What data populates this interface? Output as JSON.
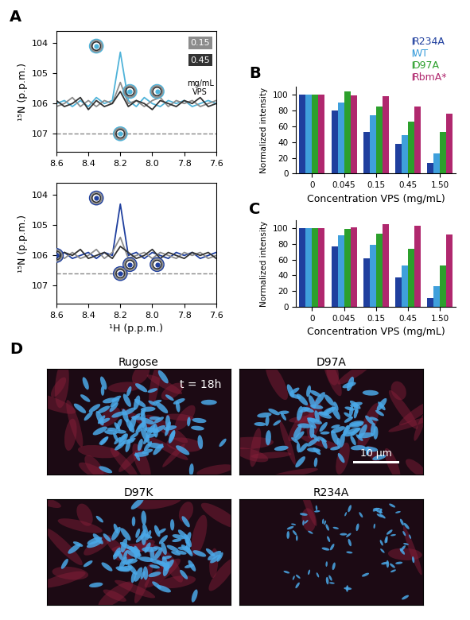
{
  "panel_labels": [
    "A",
    "B",
    "C",
    "D"
  ],
  "chart_data": [
    {
      "type": "line",
      "ylabel": "¹⁵N (p.p.m.)",
      "x": [
        8.6,
        8.55,
        8.5,
        8.45,
        8.4,
        8.35,
        8.3,
        8.25,
        8.2,
        8.15,
        8.1,
        8.05,
        8.0,
        7.95,
        7.9,
        7.85,
        7.8,
        7.75,
        7.7,
        7.65,
        7.6
      ],
      "series": [
        {
          "color": "#4fb3d9",
          "values": [
            106.0,
            105.9,
            106.1,
            105.9,
            106.1,
            105.8,
            106.0,
            105.9,
            104.3,
            105.9,
            106.1,
            105.8,
            106.0,
            106.1,
            105.9,
            106.0,
            105.9,
            106.1,
            106.0,
            105.9,
            106.0
          ]
        },
        {
          "name": "0.15",
          "color": "#8c8c8c",
          "values": [
            106.1,
            106.0,
            105.8,
            106.1,
            105.9,
            106.1,
            105.9,
            106.0,
            105.3,
            106.0,
            105.9,
            106.1,
            105.9,
            105.8,
            106.1,
            105.9,
            106.0,
            105.9,
            106.1,
            106.0,
            105.9
          ]
        },
        {
          "name": "0.45",
          "color": "#333333",
          "values": [
            105.9,
            106.1,
            106.0,
            105.8,
            106.2,
            105.9,
            106.1,
            106.0,
            105.6,
            106.1,
            105.9,
            106.0,
            106.2,
            105.9,
            106.0,
            106.1,
            105.9,
            106.0,
            105.8,
            106.1,
            106.0
          ]
        }
      ],
      "annotation": "mg/mL\nVPS",
      "peaks": {
        "x": [
          8.35,
          8.14,
          7.97,
          8.2
        ],
        "y": [
          104.1,
          105.6,
          105.6,
          107.0
        ]
      },
      "reference_line": 107.0,
      "xlim": [
        8.6,
        7.6
      ],
      "xticks": [
        8.6,
        8.4,
        8.2,
        8.0,
        7.8,
        7.6
      ],
      "ylim": [
        107.6,
        103.6
      ],
      "yticks": [
        104,
        105,
        106,
        107
      ]
    },
    {
      "type": "line",
      "xlabel": "¹H (p.p.m.)",
      "ylabel": "¹⁵N (p.p.m.)",
      "x": [
        8.6,
        8.55,
        8.5,
        8.45,
        8.4,
        8.35,
        8.3,
        8.25,
        8.2,
        8.15,
        8.1,
        8.05,
        8.0,
        7.95,
        7.9,
        7.85,
        7.8,
        7.75,
        7.7,
        7.65,
        7.6
      ],
      "series": [
        {
          "color": "#1f3f9e",
          "values": [
            106.0,
            105.9,
            106.1,
            106.0,
            105.9,
            106.1,
            105.9,
            106.0,
            104.3,
            106.0,
            105.9,
            106.1,
            105.9,
            106.0,
            106.1,
            105.9,
            106.0,
            105.9,
            106.1,
            106.0,
            105.9
          ]
        },
        {
          "color": "#8c8c8c",
          "values": [
            105.9,
            106.1,
            105.9,
            106.1,
            106.0,
            105.8,
            106.1,
            105.9,
            105.4,
            106.1,
            106.0,
            105.9,
            106.1,
            105.9,
            106.0,
            106.1,
            105.9,
            106.0,
            105.9,
            106.1,
            106.0
          ]
        },
        {
          "color": "#333333",
          "values": [
            106.1,
            105.9,
            106.0,
            105.8,
            106.1,
            106.0,
            105.9,
            106.1,
            105.7,
            105.9,
            106.1,
            106.0,
            105.8,
            106.1,
            105.9,
            106.0,
            106.1,
            105.9,
            106.0,
            105.9,
            106.1
          ]
        }
      ],
      "peaks": {
        "x": [
          8.35,
          8.6,
          8.14,
          7.97,
          8.2
        ],
        "y": [
          104.1,
          106.0,
          106.3,
          106.3,
          106.6
        ]
      },
      "reference_line": 106.6,
      "xlim": [
        8.6,
        7.6
      ],
      "xticks": [
        8.6,
        8.4,
        8.2,
        8.0,
        7.8,
        7.6
      ],
      "ylim": [
        107.6,
        103.6
      ],
      "yticks": [
        104,
        105,
        106,
        107
      ]
    },
    {
      "type": "bar",
      "xlabel": "Concentration VPS (mg/mL)",
      "ylabel": "Normalized intensity",
      "categories": [
        "0",
        "0.045",
        "0.15",
        "0.45",
        "1.50"
      ],
      "series": [
        {
          "name": "R234A",
          "color": "#1f3f9e",
          "values": [
            100,
            80,
            53,
            38,
            13
          ]
        },
        {
          "name": "WT",
          "color": "#3fa0dc",
          "values": [
            100,
            90,
            74,
            49,
            26
          ]
        },
        {
          "name": "D97A",
          "color": "#2ca02c",
          "values": [
            100,
            104,
            85,
            66,
            53
          ]
        },
        {
          "name": "RbmA*",
          "color": "#b0286e",
          "values": [
            100,
            99,
            98,
            85,
            76
          ]
        }
      ],
      "legend": "upper right",
      "ylim": [
        0,
        110
      ],
      "yticks": [
        0,
        20,
        40,
        60,
        80,
        100
      ]
    },
    {
      "type": "bar",
      "xlabel": "Concentration VPS (mg/mL)",
      "ylabel": "Normalized intensity",
      "categories": [
        "0",
        "0.045",
        "0.15",
        "0.45",
        "1.50"
      ],
      "series": [
        {
          "name": "R234A",
          "color": "#1f3f9e",
          "values": [
            100,
            77,
            62,
            37,
            11
          ]
        },
        {
          "name": "WT",
          "color": "#3fa0dc",
          "values": [
            100,
            91,
            79,
            52,
            26
          ]
        },
        {
          "name": "D97A",
          "color": "#2ca02c",
          "values": [
            100,
            99,
            93,
            74,
            52
          ]
        },
        {
          "name": "RbmA*",
          "color": "#b0286e",
          "values": [
            100,
            101,
            105,
            103,
            92
          ]
        }
      ],
      "ylim": [
        0,
        110
      ],
      "yticks": [
        0,
        20,
        40,
        60,
        80,
        100
      ]
    }
  ],
  "images": {
    "titles": [
      "Rugose",
      "D97A",
      "D97K",
      "R234A"
    ],
    "time_label": "t = 18h",
    "scale_bar": "10 μm"
  }
}
